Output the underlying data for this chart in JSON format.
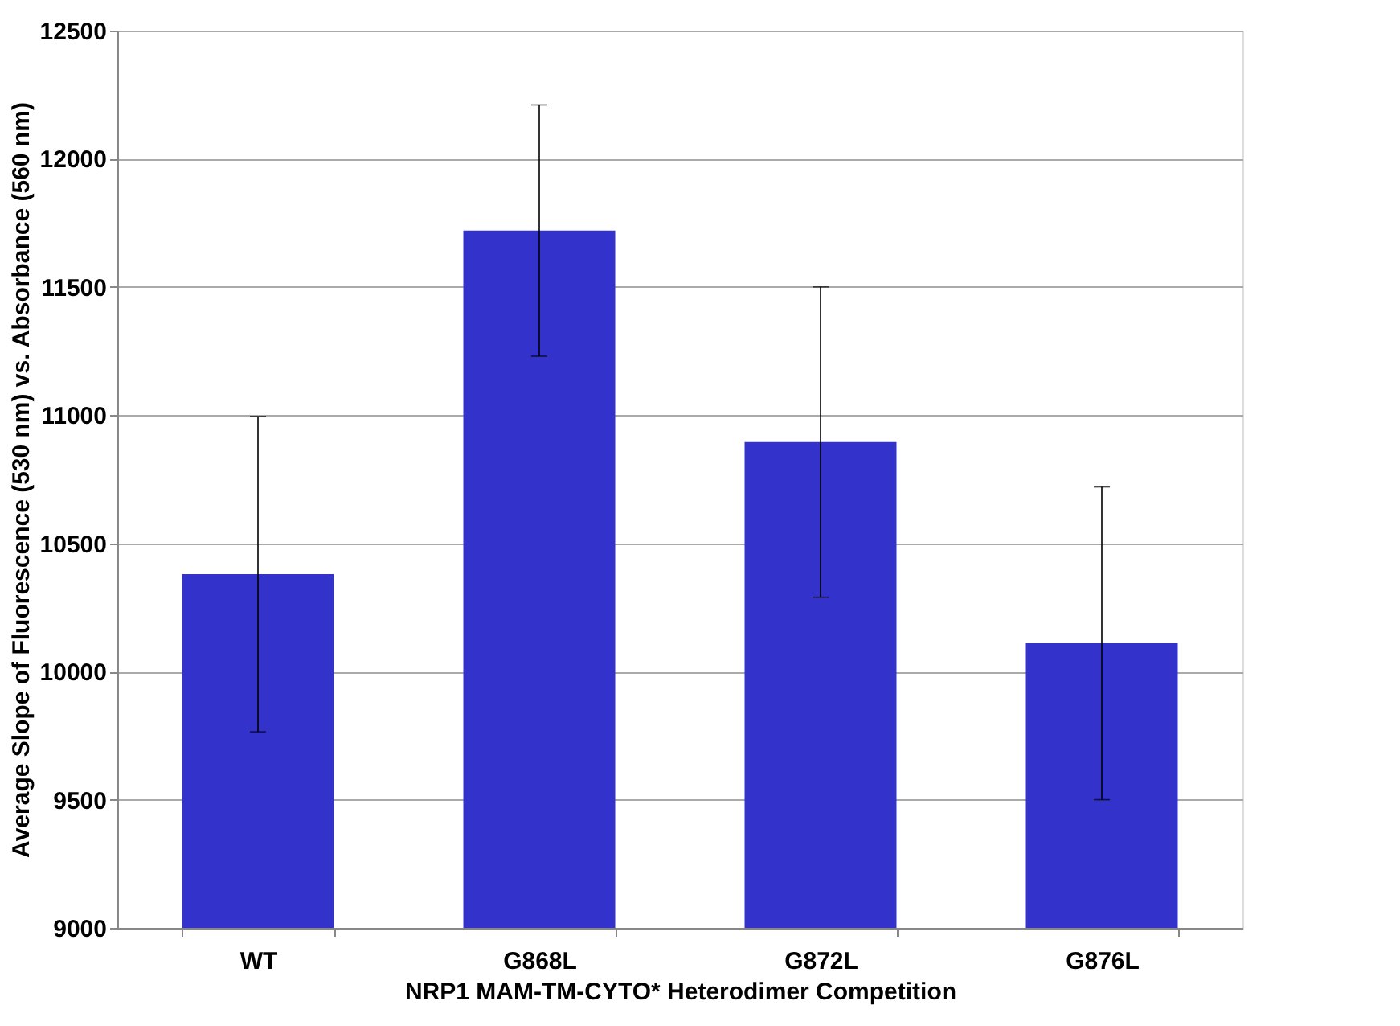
{
  "chart_data": {
    "type": "bar",
    "xlabel": "NRP1 MAM-TM-CYTO* Heterodimer Competition",
    "ylabel": "Average Slope of Fluorescence (530 nm) vs. Absorbance (560 nm)",
    "categories": [
      "WT",
      "G868L",
      "G872L",
      "G876L"
    ],
    "values": [
      10380,
      11720,
      10895,
      10110
    ],
    "errors": [
      615,
      490,
      605,
      610
    ],
    "color": "#3333cc",
    "ylim": [
      9000,
      12500
    ],
    "yticks": [
      9000,
      9500,
      10000,
      10500,
      11000,
      11500,
      12000,
      12500
    ],
    "grid": "y"
  }
}
